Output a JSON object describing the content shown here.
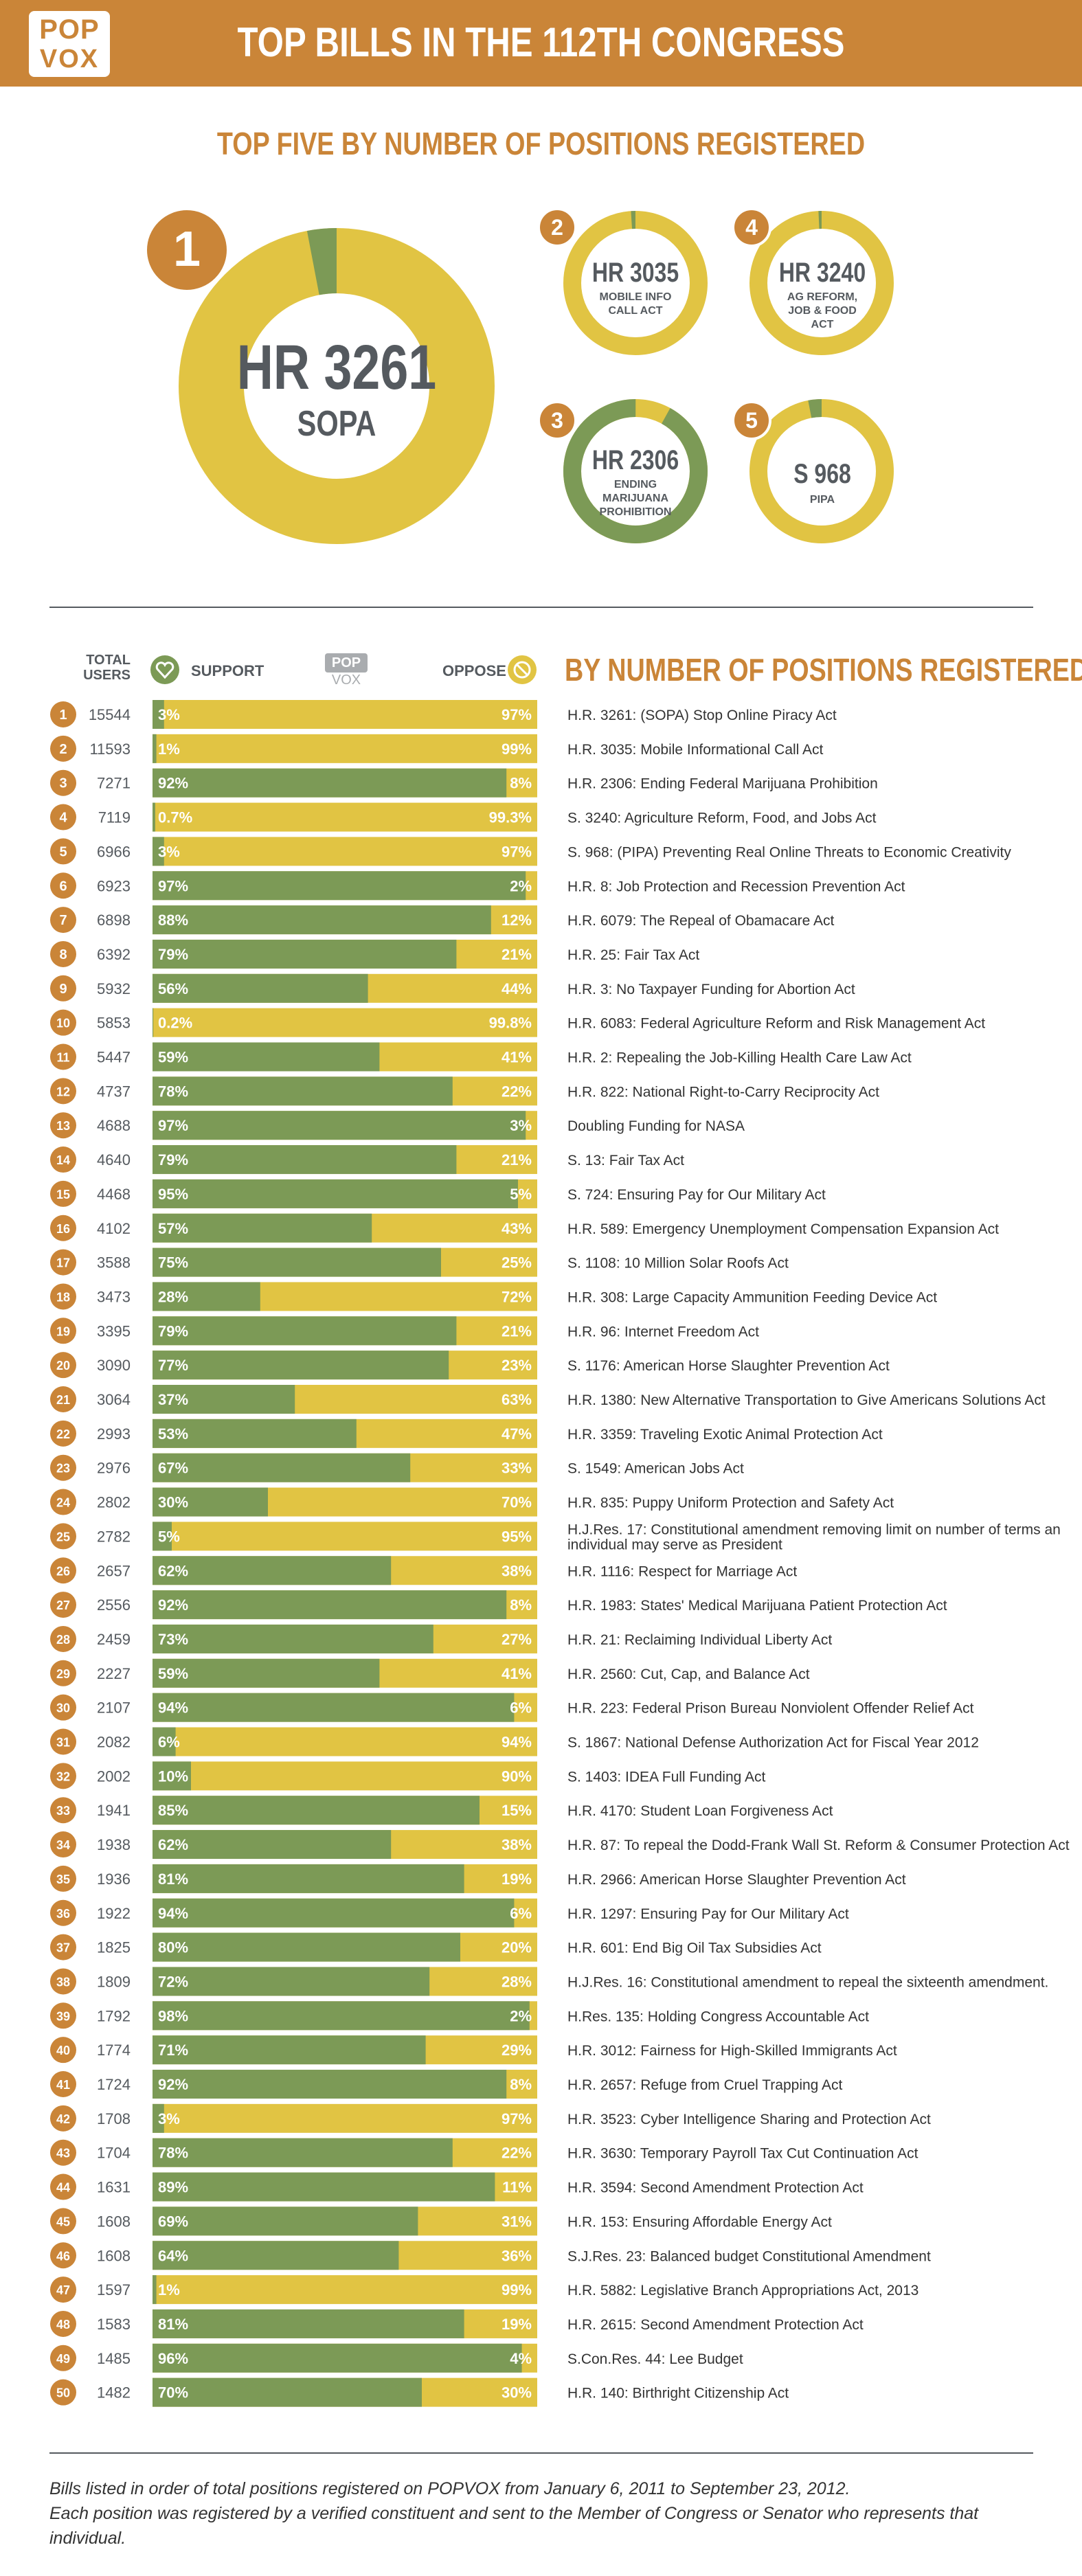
{
  "header": {
    "logo_line1": "POP",
    "logo_line2": "VOX",
    "title": "TOP BILLS IN THE 112TH CONGRESS"
  },
  "top_five": {
    "title": "TOP FIVE BY NUMBER OF POSITIONS REGISTERED",
    "items": [
      {
        "rank": "1",
        "name": "HR 3261",
        "subtitle": "SOPA",
        "support": 3
      },
      {
        "rank": "2",
        "name": "HR 3035",
        "subtitle": "MOBILE INFO CALL ACT",
        "support": 1
      },
      {
        "rank": "3",
        "name": "HR 2306",
        "subtitle": "ENDING MARIJUANA PROHIBITION",
        "support": 92
      },
      {
        "rank": "4",
        "name": "HR 3240",
        "subtitle": "AG REFORM, JOB & FOOD ACT",
        "support": 0.7
      },
      {
        "rank": "5",
        "name": "S 968",
        "subtitle": "PIPA",
        "support": 3
      }
    ]
  },
  "table_header": {
    "total_users": "TOTAL USERS",
    "support": "SUPPORT",
    "logo_top": "POP",
    "logo_bottom": "VOX",
    "oppose": "OPPOSE",
    "section_title": "BY NUMBER OF POSITIONS REGISTERED"
  },
  "colors": {
    "support": "#7c9a56",
    "oppose": "#e1c443",
    "accent": "#ca8538",
    "text": "#555a5f"
  },
  "chart_data": {
    "type": "bar",
    "title": "BY NUMBER OF POSITIONS REGISTERED",
    "orientation": "horizontal-stacked-percent",
    "series_names": [
      "SUPPORT",
      "OPPOSE"
    ],
    "rows": [
      {
        "rank": "1",
        "users": "15544",
        "support": "3%",
        "oppose": "97%",
        "sv": 3,
        "bill": "H.R. 3261: (SOPA) Stop Online Piracy Act"
      },
      {
        "rank": "2",
        "users": "11593",
        "support": "1%",
        "oppose": "99%",
        "sv": 1,
        "bill": "H.R. 3035: Mobile Informational Call Act"
      },
      {
        "rank": "3",
        "users": "7271",
        "support": "92%",
        "oppose": "8%",
        "sv": 92,
        "bill": "H.R. 2306: Ending Federal Marijuana Prohibition"
      },
      {
        "rank": "4",
        "users": "7119",
        "support": "0.7%",
        "oppose": "99.3%",
        "sv": 0.7,
        "bill": "S. 3240: Agriculture Reform, Food, and Jobs Act"
      },
      {
        "rank": "5",
        "users": "6966",
        "support": "3%",
        "oppose": "97%",
        "sv": 3,
        "bill": "S. 968: (PIPA) Preventing Real Online Threats to Economic Creativity"
      },
      {
        "rank": "6",
        "users": "6923",
        "support": "97%",
        "oppose": "2%",
        "sv": 97,
        "bill": "H.R. 8: Job Protection and Recession Prevention Act"
      },
      {
        "rank": "7",
        "users": "6898",
        "support": "88%",
        "oppose": "12%",
        "sv": 88,
        "bill": "H.R. 6079: The Repeal of Obamacare Act"
      },
      {
        "rank": "8",
        "users": "6392",
        "support": "79%",
        "oppose": "21%",
        "sv": 79,
        "bill": "H.R. 25: Fair Tax Act"
      },
      {
        "rank": "9",
        "users": "5932",
        "support": "56%",
        "oppose": "44%",
        "sv": 56,
        "bill": "H.R. 3: No Taxpayer Funding for Abortion Act"
      },
      {
        "rank": "10",
        "users": "5853",
        "support": "0.2%",
        "oppose": "99.8%",
        "sv": 0.2,
        "bill": "H.R. 6083: Federal Agriculture Reform and Risk Management Act"
      },
      {
        "rank": "11",
        "users": "5447",
        "support": "59%",
        "oppose": "41%",
        "sv": 59,
        "bill": "H.R. 2: Repealing the Job-Killing Health Care Law Act"
      },
      {
        "rank": "12",
        "users": "4737",
        "support": "78%",
        "oppose": "22%",
        "sv": 78,
        "bill": "H.R. 822: National Right-to-Carry Reciprocity Act"
      },
      {
        "rank": "13",
        "users": "4688",
        "support": "97%",
        "oppose": "3%",
        "sv": 97,
        "bill": "Doubling Funding for NASA"
      },
      {
        "rank": "14",
        "users": "4640",
        "support": "79%",
        "oppose": "21%",
        "sv": 79,
        "bill": "S. 13: Fair Tax Act"
      },
      {
        "rank": "15",
        "users": "4468",
        "support": "95%",
        "oppose": "5%",
        "sv": 95,
        "bill": "S. 724: Ensuring Pay for Our Military Act"
      },
      {
        "rank": "16",
        "users": "4102",
        "support": "57%",
        "oppose": "43%",
        "sv": 57,
        "bill": "H.R. 589: Emergency Unemployment Compensation Expansion Act"
      },
      {
        "rank": "17",
        "users": "3588",
        "support": "75%",
        "oppose": "25%",
        "sv": 75,
        "bill": "S. 1108: 10 Million Solar Roofs Act"
      },
      {
        "rank": "18",
        "users": "3473",
        "support": "28%",
        "oppose": "72%",
        "sv": 28,
        "bill": "H.R. 308: Large Capacity Ammunition Feeding Device Act"
      },
      {
        "rank": "19",
        "users": "3395",
        "support": "79%",
        "oppose": "21%",
        "sv": 79,
        "bill": "H.R. 96: Internet Freedom Act"
      },
      {
        "rank": "20",
        "users": "3090",
        "support": "77%",
        "oppose": "23%",
        "sv": 77,
        "bill": "S. 1176: American Horse Slaughter Prevention Act"
      },
      {
        "rank": "21",
        "users": "3064",
        "support": "37%",
        "oppose": "63%",
        "sv": 37,
        "bill": "H.R. 1380: New Alternative Transportation to Give Americans Solutions Act"
      },
      {
        "rank": "22",
        "users": "2993",
        "support": "53%",
        "oppose": "47%",
        "sv": 53,
        "bill": "H.R. 3359: Traveling Exotic Animal Protection Act"
      },
      {
        "rank": "23",
        "users": "2976",
        "support": "67%",
        "oppose": "33%",
        "sv": 67,
        "bill": "S. 1549: American Jobs Act"
      },
      {
        "rank": "24",
        "users": "2802",
        "support": "30%",
        "oppose": "70%",
        "sv": 30,
        "bill": "H.R. 835: Puppy Uniform Protection and Safety Act"
      },
      {
        "rank": "25",
        "users": "2782",
        "support": "5%",
        "oppose": "95%",
        "sv": 5,
        "bill": "H.J.Res. 17: Constitutional amendment removing limit on number of terms an individual may serve as President"
      },
      {
        "rank": "26",
        "users": "2657",
        "support": "62%",
        "oppose": "38%",
        "sv": 62,
        "bill": "H.R. 1116: Respect for Marriage Act"
      },
      {
        "rank": "27",
        "users": "2556",
        "support": "92%",
        "oppose": "8%",
        "sv": 92,
        "bill": "H.R. 1983: States' Medical Marijuana Patient Protection Act"
      },
      {
        "rank": "28",
        "users": "2459",
        "support": "73%",
        "oppose": "27%",
        "sv": 73,
        "bill": "H.R. 21: Reclaiming Individual Liberty Act"
      },
      {
        "rank": "29",
        "users": "2227",
        "support": "59%",
        "oppose": "41%",
        "sv": 59,
        "bill": "H.R. 2560: Cut, Cap, and Balance Act"
      },
      {
        "rank": "30",
        "users": "2107",
        "support": "94%",
        "oppose": "6%",
        "sv": 94,
        "bill": "H.R. 223: Federal Prison Bureau Nonviolent Offender Relief Act"
      },
      {
        "rank": "31",
        "users": "2082",
        "support": "6%",
        "oppose": "94%",
        "sv": 6,
        "bill": "S. 1867: National Defense Authorization Act for Fiscal Year 2012"
      },
      {
        "rank": "32",
        "users": "2002",
        "support": "10%",
        "oppose": "90%",
        "sv": 10,
        "bill": "S. 1403: IDEA Full Funding Act"
      },
      {
        "rank": "33",
        "users": "1941",
        "support": "85%",
        "oppose": "15%",
        "sv": 85,
        "bill": "H.R. 4170: Student Loan Forgiveness Act"
      },
      {
        "rank": "34",
        "users": "1938",
        "support": "62%",
        "oppose": "38%",
        "sv": 62,
        "bill": "H.R. 87: To repeal the Dodd-Frank Wall St. Reform & Consumer Protection Act"
      },
      {
        "rank": "35",
        "users": "1936",
        "support": "81%",
        "oppose": "19%",
        "sv": 81,
        "bill": "H.R. 2966: American Horse Slaughter Prevention Act"
      },
      {
        "rank": "36",
        "users": "1922",
        "support": "94%",
        "oppose": "6%",
        "sv": 94,
        "bill": "H.R. 1297: Ensuring Pay for Our Military Act"
      },
      {
        "rank": "37",
        "users": "1825",
        "support": "80%",
        "oppose": "20%",
        "sv": 80,
        "bill": "H.R. 601: End Big Oil Tax Subsidies Act"
      },
      {
        "rank": "38",
        "users": "1809",
        "support": "72%",
        "oppose": "28%",
        "sv": 72,
        "bill": "H.J.Res. 16: Constitutional amendment to repeal the sixteenth amendment."
      },
      {
        "rank": "39",
        "users": "1792",
        "support": "98%",
        "oppose": "2%",
        "sv": 98,
        "bill": "H.Res. 135: Holding Congress Accountable Act"
      },
      {
        "rank": "40",
        "users": "1774",
        "support": "71%",
        "oppose": "29%",
        "sv": 71,
        "bill": "H.R. 3012: Fairness for High-Skilled Immigrants Act"
      },
      {
        "rank": "41",
        "users": "1724",
        "support": "92%",
        "oppose": "8%",
        "sv": 92,
        "bill": "H.R. 2657: Refuge from Cruel Trapping Act"
      },
      {
        "rank": "42",
        "users": "1708",
        "support": "3%",
        "oppose": "97%",
        "sv": 3,
        "bill": "H.R. 3523: Cyber Intelligence Sharing and Protection Act"
      },
      {
        "rank": "43",
        "users": "1704",
        "support": "78%",
        "oppose": "22%",
        "sv": 78,
        "bill": "H.R. 3630: Temporary Payroll Tax Cut Continuation Act"
      },
      {
        "rank": "44",
        "users": "1631",
        "support": "89%",
        "oppose": "11%",
        "sv": 89,
        "bill": "H.R. 3594: Second Amendment Protection Act"
      },
      {
        "rank": "45",
        "users": "1608",
        "support": "69%",
        "oppose": "31%",
        "sv": 69,
        "bill": "H.R. 153: Ensuring Affordable Energy Act"
      },
      {
        "rank": "46",
        "users": "1608",
        "support": "64%",
        "oppose": "36%",
        "sv": 64,
        "bill": "S.J.Res. 23: Balanced budget Constitutional Amendment"
      },
      {
        "rank": "47",
        "users": "1597",
        "support": "1%",
        "oppose": "99%",
        "sv": 1,
        "bill": "H.R. 5882: Legislative Branch Appropriations Act, 2013"
      },
      {
        "rank": "48",
        "users": "1583",
        "support": "81%",
        "oppose": "19%",
        "sv": 81,
        "bill": "H.R. 2615: Second Amendment Protection Act"
      },
      {
        "rank": "49",
        "users": "1485",
        "support": "96%",
        "oppose": "4%",
        "sv": 96,
        "bill": "S.Con.Res. 44: Lee Budget"
      },
      {
        "rank": "50",
        "users": "1482",
        "support": "70%",
        "oppose": "30%",
        "sv": 70,
        "bill": "H.R. 140: Birthright Citizenship Act"
      }
    ]
  },
  "footnote": {
    "line1": "Bills listed in order of total positions registered on POPVOX from January 6, 2011 to September 23, 2012.",
    "line2": "Each position was registered by a verified constituent and sent to the Member of Congress or Senator who represents that individual."
  }
}
